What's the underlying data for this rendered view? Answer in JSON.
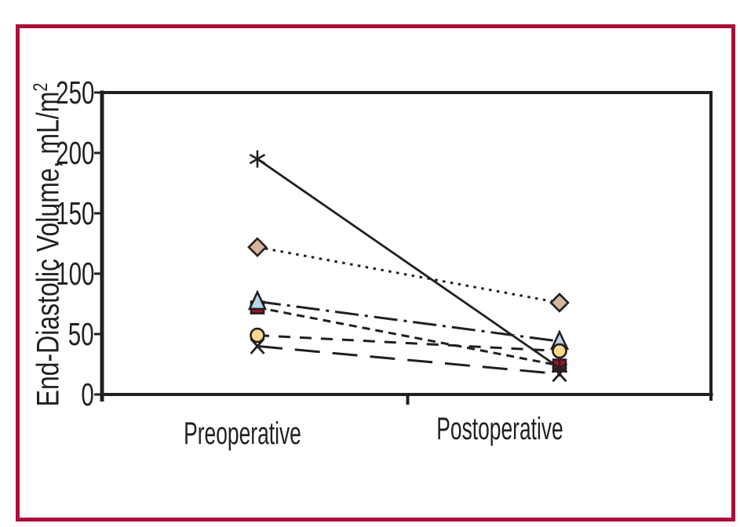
{
  "figure": {
    "background": "#ffffff",
    "border_color": "#ac0d3a",
    "ink_color": "#231f20"
  },
  "chart_data": {
    "type": "line",
    "title": "",
    "categories": [
      "Preoperative",
      "Postoperative"
    ],
    "ylabel": "End-Diastolic Volume, mL/m²",
    "ylabel_main": "End-Diastolic Volume, mL/m",
    "ylabel_sup": "2",
    "ylim": [
      0,
      250
    ],
    "yticks": [
      0,
      50,
      100,
      150,
      200,
      250
    ],
    "grid": false,
    "legend": "none",
    "series": [
      {
        "marker": "asterisk",
        "line_style": "solid",
        "marker_color": "#231f20",
        "values": [
          195,
          22
        ]
      },
      {
        "marker": "diamond",
        "line_style": "dotted",
        "marker_color": "#d5b49d",
        "values": [
          122,
          76
        ]
      },
      {
        "marker": "triangle",
        "line_style": "dash-dot",
        "marker_color": "#b9d5ea",
        "values": [
          77,
          44
        ]
      },
      {
        "marker": "square",
        "line_style": "short-dash",
        "marker_color": "#a0122f",
        "values": [
          72,
          24
        ]
      },
      {
        "marker": "circle",
        "line_style": "medium-dash",
        "marker_color": "#fcd78e",
        "values": [
          49,
          36
        ]
      },
      {
        "marker": "x",
        "line_style": "long-dash",
        "marker_color": "#231f20",
        "values": [
          40,
          17
        ]
      }
    ]
  }
}
